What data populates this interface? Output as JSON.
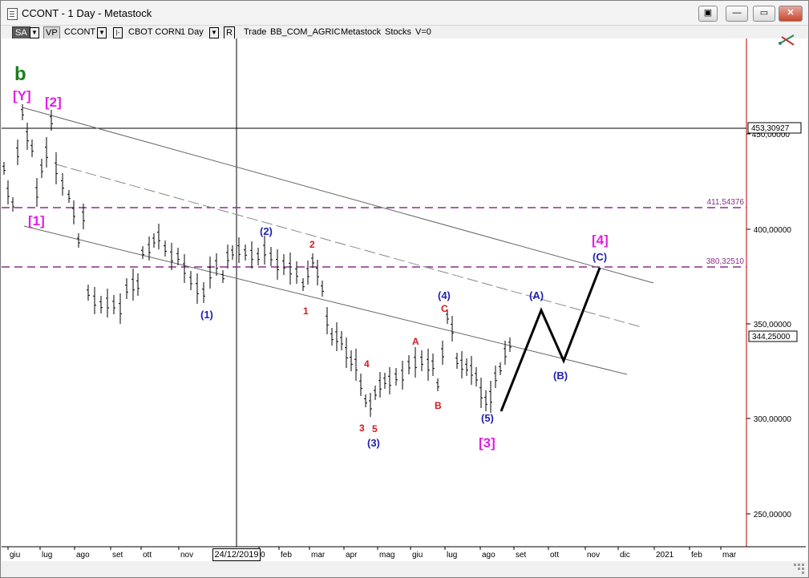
{
  "window": {
    "title": "CCONT - 1 Day - Metastock",
    "buttons": [
      "▣",
      "—",
      "▭",
      "✕"
    ]
  },
  "toolbar": {
    "sa_label": "SA",
    "vp_label": "VP",
    "symbol": "CCONT",
    "name": "CBOT CORN",
    "period": "1 Day",
    "r_label": "R",
    "trade": "Trade",
    "code": "BB_COM_AGRIC",
    "source": "Metastock",
    "category": "Stocks",
    "volume": "V=0"
  },
  "chart": {
    "price_labels": [
      "450,00000",
      "400,00000",
      "350,00000",
      "300,00000",
      "250,00000"
    ],
    "hline_label": "453,30927",
    "fib1_label": "411,54376",
    "fib2_label": "380,32510",
    "last_price": "344,25000",
    "cursor_date": "24/12/2019",
    "months": [
      "giu",
      "lug",
      "ago",
      "set",
      "ott",
      "nov",
      "0",
      "feb",
      "mar",
      "apr",
      "mag",
      "giu",
      "lug",
      "ago",
      "set",
      "ott",
      "nov",
      "dic",
      "2021",
      "feb",
      "mar"
    ],
    "colors": {
      "wave_blue": "#1f1fb4",
      "wave_magenta": "#e020e0",
      "wave_red": "#d41a1a",
      "wave_green": "#1a7f1a",
      "fib_line": "#8b2f8b"
    },
    "wave_labels": {
      "b": "b",
      "Y": "[Y]",
      "p2": "[2]",
      "p1": "[1]",
      "n1": "(1)",
      "n2": "(2)",
      "r2": "2",
      "r1": "1",
      "r4": "4",
      "r3": "3",
      "r5": "5",
      "n3": "(3)",
      "A": "A",
      "B": "B",
      "C": "C",
      "n4": "(4)",
      "n5": "(5)",
      "p3": "[3]",
      "nA": "(A)",
      "nB": "(B)",
      "nC": "(C)",
      "p4": "[4]"
    }
  },
  "icons": {
    "tool_icon": "trend-tool-icon"
  }
}
